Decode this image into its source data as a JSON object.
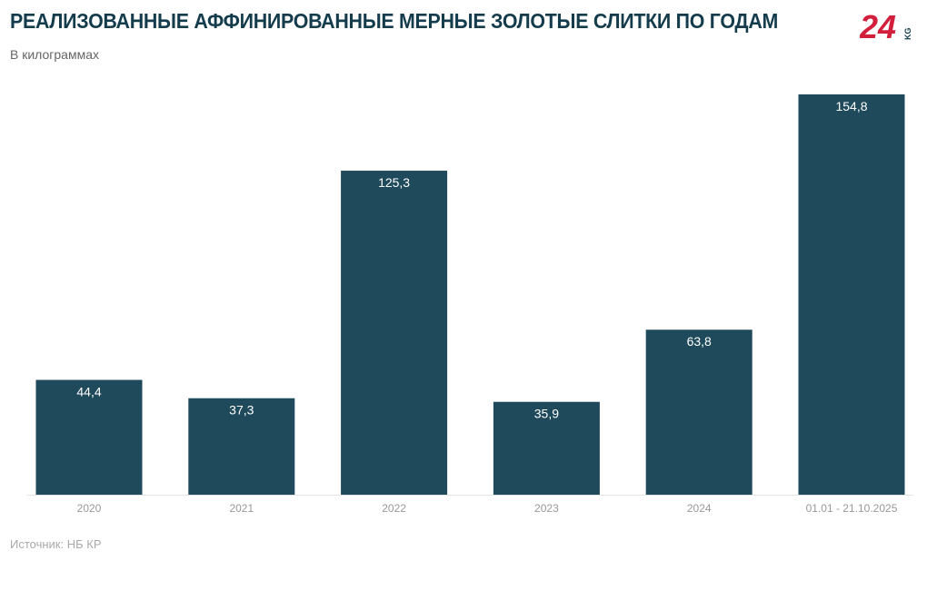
{
  "header": {
    "title": "РЕАЛИЗОВАННЫЕ АФФИНИРОВАННЫЕ МЕРНЫЕ ЗОЛОТЫЕ СЛИТКИ ПО ГОДАМ",
    "subtitle": "В килограммах",
    "logo_text": "24 KG"
  },
  "footer": {
    "source": "Источник: НБ КР"
  },
  "colors": {
    "bar": "#1f4a5c",
    "title": "#143c4c",
    "logo": "#d21f3c"
  },
  "chart_data": {
    "type": "bar",
    "title": "РЕАЛИЗОВАННЫЕ АФФИНИРОВАННЫЕ МЕРНЫЕ ЗОЛОТЫЕ СЛИТКИ ПО ГОДАМ",
    "subtitle": "В килограммах",
    "categories": [
      "2020",
      "2021",
      "2022",
      "2023",
      "2024",
      "01.01 - 21.10.2025"
    ],
    "values": [
      44.4,
      37.3,
      125.3,
      35.9,
      63.8,
      154.8
    ],
    "labels": [
      "44,4",
      "37,3",
      "125,3",
      "35,9",
      "63,8",
      "154,8"
    ],
    "xlabel": "",
    "ylabel": "",
    "ylim": [
      0,
      154.8
    ],
    "grid": false
  }
}
